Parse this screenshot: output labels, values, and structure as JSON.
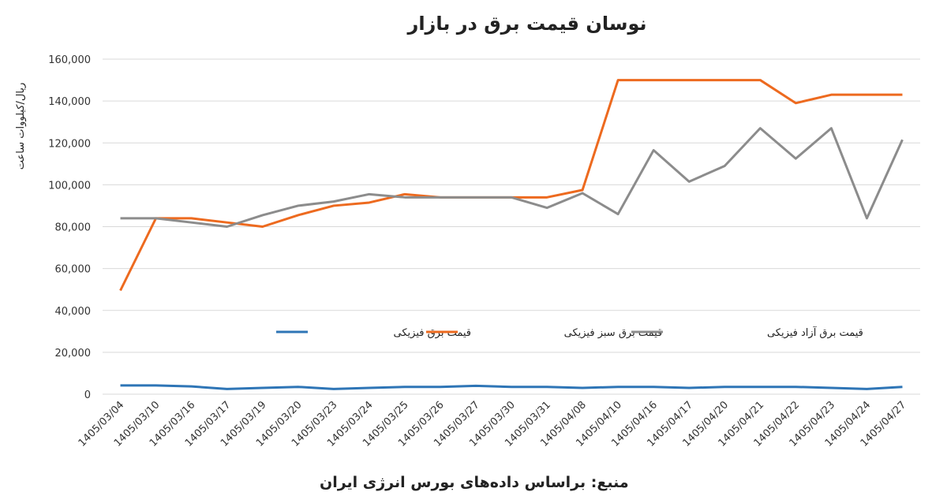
{
  "chart_data": {
    "type": "line",
    "title": "نوسان قیمت برق در بازار",
    "y_label": "ریال/کیلووات ساعت",
    "source": "منبع: براساس داده‌های بورس انرژی ایران",
    "categories": [
      "1405/03/04",
      "1405/03/10",
      "1405/03/16",
      "1405/03/17",
      "1405/03/19",
      "1405/03/20",
      "1405/03/23",
      "1405/03/24",
      "1405/03/25",
      "1405/03/26",
      "1405/03/27",
      "1405/03/30",
      "1405/03/31",
      "1405/04/08",
      "1405/04/10",
      "1405/04/16",
      "1405/04/17",
      "1405/04/20",
      "1405/04/21",
      "1405/04/22",
      "1405/04/23",
      "1405/04/24",
      "1405/04/27"
    ],
    "series": [
      {
        "name": "قیمت برق فیزیکی",
        "color": "#2e75b6",
        "values": [
          4200,
          4200,
          3700,
          2500,
          3000,
          3500,
          2500,
          3000,
          3500,
          3500,
          4000,
          3500,
          3500,
          3000,
          3500,
          3500,
          3000,
          3500,
          3500,
          3500,
          3000,
          2500,
          3500
        ]
      },
      {
        "name": "قیمت برق سبز فیزیکی",
        "color": "#ed6a1f",
        "values": [
          49500,
          84000,
          84000,
          82000,
          80000,
          85500,
          90000,
          91500,
          95500,
          94000,
          94000,
          94000,
          94000,
          97500,
          150000,
          150000,
          150000,
          150000,
          150000,
          139000,
          143000,
          143000,
          143000
        ]
      },
      {
        "name": "قیمت برق آزاد فیزیکی",
        "color": "#8c8c8c",
        "values": [
          84000,
          84000,
          82000,
          80000,
          85500,
          90000,
          92000,
          95500,
          94000,
          94000,
          94000,
          94000,
          89000,
          96000,
          86000,
          116500,
          101500,
          109000,
          127000,
          112500,
          127000,
          84000,
          121500
        ]
      }
    ],
    "ylim": [
      0,
      160000
    ],
    "yticks": [
      0,
      {
        "value": 20000,
        "label": "20,000"
      },
      {
        "value": 40000,
        "label": "40,000"
      },
      {
        "value": 60000,
        "label": "60,000"
      },
      {
        "value": 80000,
        "label": "80,000"
      },
      {
        "value": 100000,
        "label": "100,000"
      },
      {
        "value": 120000,
        "label": "120,000"
      },
      {
        "value": 140000,
        "label": "140,000"
      },
      {
        "value": 160000,
        "label": "160,000"
      }
    ],
    "grid": true
  }
}
